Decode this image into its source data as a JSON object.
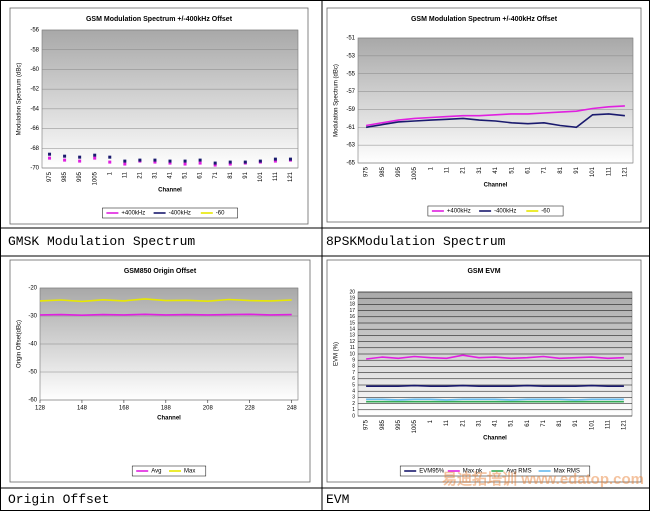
{
  "captions": [
    "GMSK Modulation Spectrum",
    "8PSKModulation Spectrum",
    "Origin Offset",
    "EVM"
  ],
  "watermark": "易迪拓培训 www.edatop.com",
  "chart_data": [
    {
      "type": "scatter",
      "title": "GSM Modulation Spectrum +/-400kHz Offset",
      "xlabel": "Channel",
      "ylabel": "Modulation Spectrum (dBc)",
      "categories": [
        "975",
        "985",
        "995",
        "1005",
        "1",
        "11",
        "21",
        "31",
        "41",
        "51",
        "61",
        "71",
        "81",
        "91",
        "101",
        "111",
        "121"
      ],
      "ylim": [
        -70,
        -56
      ],
      "yticks": [
        -56,
        -58,
        -60,
        -62,
        -64,
        -66,
        -68,
        -70
      ],
      "grid": true,
      "series": [
        {
          "name": "+400kHz",
          "color": "#e020e0",
          "values": [
            -69.0,
            -69.2,
            -69.3,
            -69.0,
            -69.4,
            -69.6,
            -69.3,
            -69.4,
            -69.5,
            -69.6,
            -69.5,
            -69.7,
            -69.6,
            -69.5,
            -69.4,
            -69.3,
            -69.2
          ]
        },
        {
          "name": "-400kHz",
          "color": "#1a1a6e",
          "values": [
            -68.6,
            -68.8,
            -68.9,
            -68.7,
            -68.9,
            -69.3,
            -69.2,
            -69.2,
            -69.3,
            -69.3,
            -69.2,
            -69.5,
            -69.4,
            -69.4,
            -69.3,
            -69.1,
            -69.1
          ]
        },
        {
          "name": "-60",
          "color": "#e8e800",
          "values": [
            null,
            null,
            null,
            null,
            null,
            null,
            null,
            null,
            null,
            null,
            null,
            null,
            null,
            null,
            null,
            null,
            null
          ]
        }
      ]
    },
    {
      "type": "line",
      "title": "GSM Modulation Spectrum +/-400kHz Offset",
      "xlabel": "Channel",
      "ylabel": "Modulation Spectrum (dBc)",
      "categories": [
        "975",
        "985",
        "995",
        "1005",
        "1",
        "11",
        "21",
        "31",
        "41",
        "51",
        "61",
        "71",
        "81",
        "91",
        "101",
        "111",
        "121"
      ],
      "ylim": [
        -65,
        -51
      ],
      "yticks": [
        -51,
        -53,
        -55,
        -57,
        -59,
        -61,
        -63,
        -65
      ],
      "grid": true,
      "series": [
        {
          "name": "+400kHz",
          "color": "#e020e0",
          "values": [
            -60.8,
            -60.5,
            -60.2,
            -60.0,
            -59.9,
            -59.8,
            -59.7,
            -59.7,
            -59.6,
            -59.5,
            -59.5,
            -59.4,
            -59.3,
            -59.2,
            -58.9,
            -58.7,
            -58.6
          ]
        },
        {
          "name": "-400kHz",
          "color": "#1a1a6e",
          "values": [
            -61.0,
            -60.7,
            -60.4,
            -60.3,
            -60.2,
            -60.1,
            -60.0,
            -60.2,
            -60.3,
            -60.5,
            -60.6,
            -60.5,
            -60.8,
            -61.0,
            -59.6,
            -59.5,
            -59.7
          ]
        },
        {
          "name": "-60",
          "color": "#e8e800",
          "values": [
            null,
            null,
            null,
            null,
            null,
            null,
            null,
            null,
            null,
            null,
            null,
            null,
            null,
            null,
            null,
            null,
            null
          ]
        }
      ]
    },
    {
      "type": "line",
      "title": "GSM850 Origin Offset",
      "xlabel": "Channel",
      "ylabel": "Origin Offset(dBc)",
      "x": [
        128,
        138,
        148,
        158,
        168,
        178,
        188,
        198,
        208,
        218,
        228,
        238,
        248
      ],
      "xlim": [
        128,
        251
      ],
      "xticks": [
        128,
        148,
        168,
        188,
        208,
        228,
        248
      ],
      "ylim": [
        -60,
        -20
      ],
      "yticks": [
        -20,
        -30,
        -40,
        -50,
        -60
      ],
      "grid": true,
      "series": [
        {
          "name": "Avg",
          "color": "#e020e0",
          "values": [
            -29.6,
            -29.5,
            -29.7,
            -29.5,
            -29.6,
            -29.4,
            -29.6,
            -29.5,
            -29.6,
            -29.5,
            -29.4,
            -29.6,
            -29.5
          ]
        },
        {
          "name": "Max",
          "color": "#e8e800",
          "values": [
            -24.6,
            -24.3,
            -24.8,
            -24.2,
            -24.6,
            -23.9,
            -24.5,
            -24.4,
            -24.7,
            -24.1,
            -24.5,
            -24.6,
            -24.3
          ]
        }
      ]
    },
    {
      "type": "line",
      "title": "GSM EVM",
      "xlabel": "Channel",
      "ylabel": "EVM (%)",
      "categories": [
        "975",
        "985",
        "995",
        "1005",
        "1",
        "11",
        "21",
        "31",
        "41",
        "51",
        "61",
        "71",
        "81",
        "91",
        "101",
        "111",
        "121"
      ],
      "ylim": [
        0,
        20
      ],
      "yticks": [
        0,
        1,
        2,
        3,
        4,
        5,
        6,
        7,
        8,
        9,
        10,
        11,
        12,
        13,
        14,
        15,
        16,
        17,
        18,
        19,
        20
      ],
      "grid": true,
      "series": [
        {
          "name": "EVM95%",
          "color": "#1a1a6e",
          "values": [
            4.8,
            4.8,
            4.8,
            4.9,
            4.8,
            4.8,
            4.9,
            4.8,
            4.8,
            4.8,
            4.9,
            4.8,
            4.8,
            4.8,
            4.9,
            4.8,
            4.8
          ]
        },
        {
          "name": "Max pk",
          "color": "#e020e0",
          "values": [
            9.2,
            9.5,
            9.3,
            9.6,
            9.4,
            9.3,
            9.8,
            9.4,
            9.5,
            9.3,
            9.4,
            9.6,
            9.3,
            9.4,
            9.5,
            9.3,
            9.4
          ]
        },
        {
          "name": "Avg RMS",
          "color": "#33aa55",
          "values": [
            2.3,
            2.3,
            2.3,
            2.3,
            2.3,
            2.3,
            2.3,
            2.3,
            2.3,
            2.3,
            2.3,
            2.3,
            2.3,
            2.3,
            2.3,
            2.3,
            2.3
          ]
        },
        {
          "name": "Max RMS",
          "color": "#66bbee",
          "values": [
            2.7,
            2.7,
            2.6,
            2.7,
            2.7,
            2.6,
            2.7,
            2.7,
            2.7,
            2.6,
            2.7,
            2.7,
            2.7,
            2.6,
            2.7,
            2.7,
            2.7
          ]
        }
      ]
    }
  ]
}
